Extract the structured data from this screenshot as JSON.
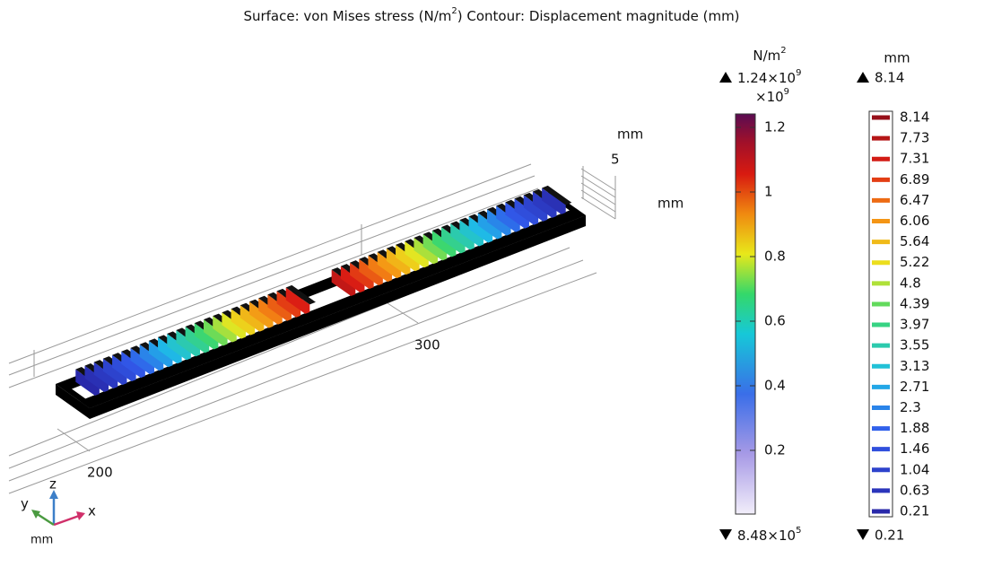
{
  "title": {
    "surface": "Surface: von Mises stress (N/m",
    "surface_sup": "2",
    "contour": ")  Contour: Displacement magnitude (mm)"
  },
  "axes": {
    "mm_top": "mm",
    "five": "5",
    "mm_right": "mm",
    "tick_300": "300",
    "tick_200": "200"
  },
  "triad": {
    "z": "z",
    "y": "y",
    "x": "x",
    "unit": "mm"
  },
  "stress_legend": {
    "unit": "N/m",
    "unit_sup": "2",
    "max": "1.24×10",
    "max_sup": "9",
    "multiplier": "×10",
    "multiplier_sup": "9",
    "ticks": [
      "1.2",
      "1",
      "0.8",
      "0.6",
      "0.4",
      "0.2"
    ],
    "min": "8.48×10",
    "min_sup": "5"
  },
  "displacement_legend": {
    "unit": "mm",
    "max": "8.14",
    "levels": [
      "8.14",
      "7.73",
      "7.31",
      "6.89",
      "6.47",
      "6.06",
      "5.64",
      "5.22",
      "4.8",
      "4.39",
      "3.97",
      "3.55",
      "3.13",
      "2.71",
      "2.3",
      "1.88",
      "1.46",
      "1.04",
      "0.63",
      "0.21"
    ],
    "min": "0.21"
  }
}
